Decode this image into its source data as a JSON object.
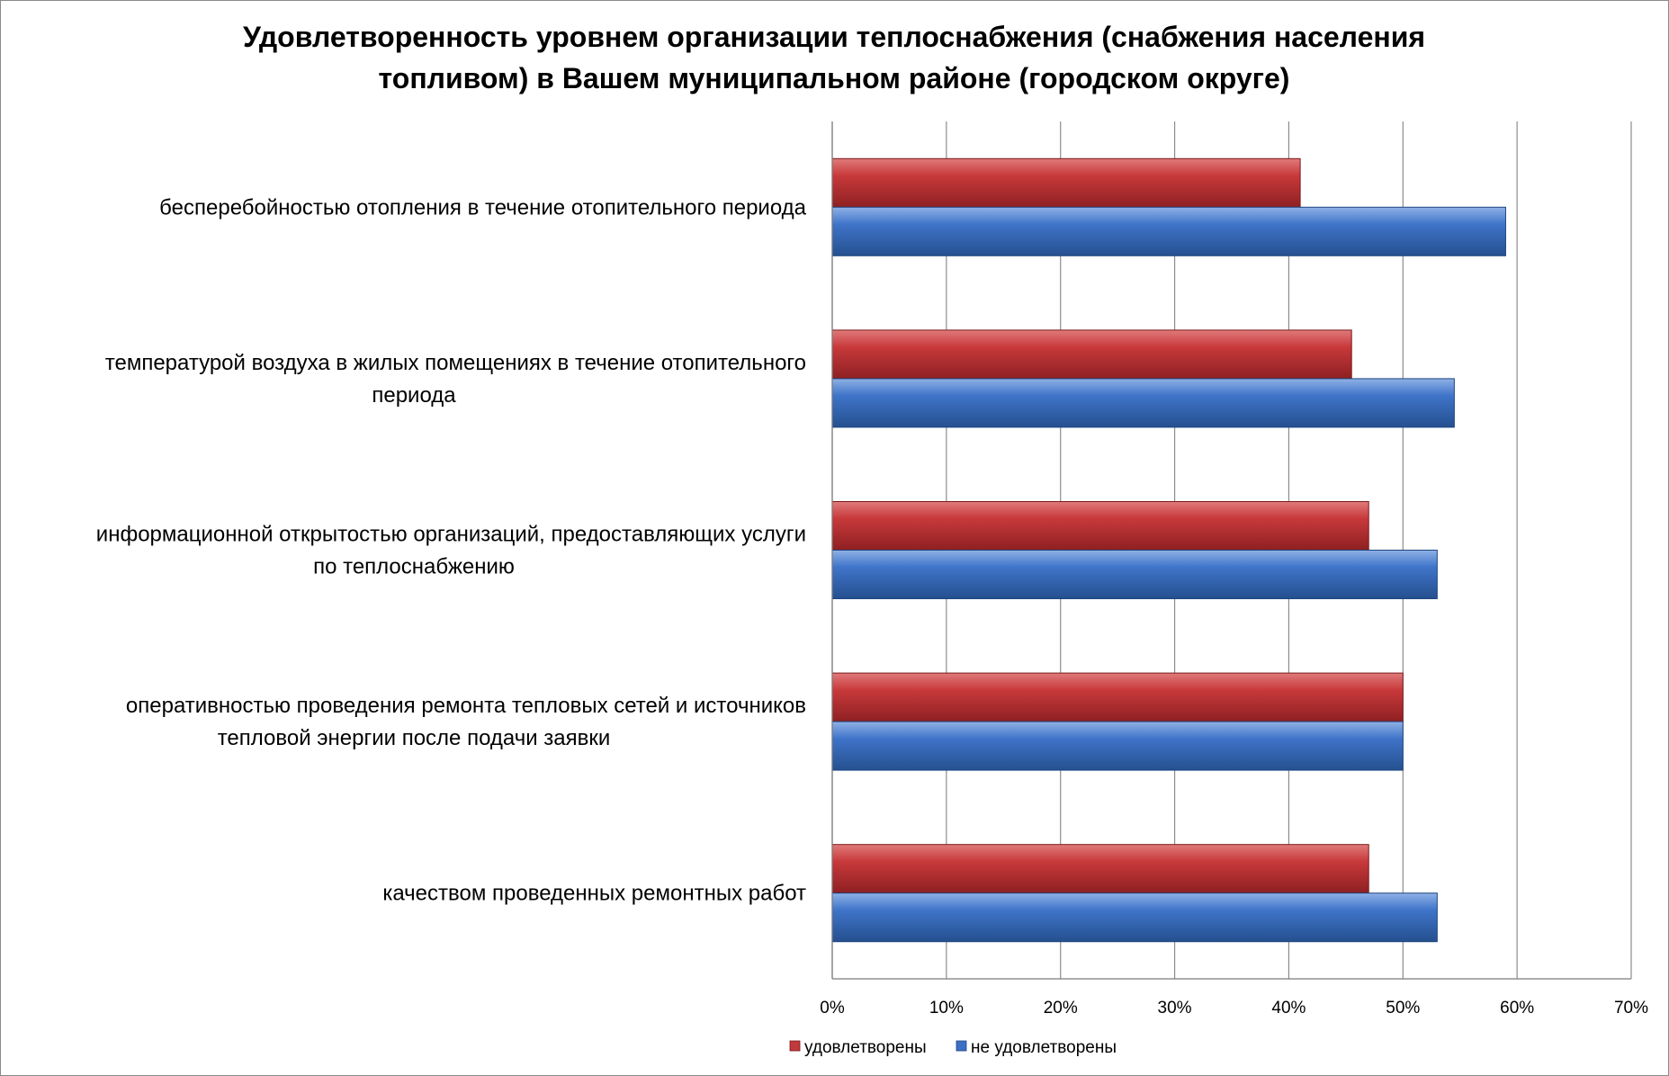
{
  "chart_data": {
    "type": "bar",
    "orientation": "horizontal",
    "title": "Удовлетворенность уровнем организации теплоснабжения (снабжения населения топливом) в Вашем муниципальном районе (городском округе)",
    "title_lines": [
      "Удовлетворенность уровнем организации теплоснабжения (снабжения населения",
      "топливом) в Вашем муниципальном районе (городском округе)"
    ],
    "categories": [
      [
        "бесперебойностью  отопления в течение отопительного периода"
      ],
      [
        "температурой  воздуха в жилых помещениях в течение отопительного",
        "периода"
      ],
      [
        "информационной открытостью  организаций, предоставляющих услуги",
        "по теплоснабжению"
      ],
      [
        "оперативностью проведения ремонта тепловых сетей и источников",
        "тепловой энергии после подачи заявки"
      ],
      [
        "качеством  проведенных ремонтных работ"
      ]
    ],
    "series": [
      {
        "name": "удовлетворены",
        "color": "#c0393b",
        "values": [
          41,
          45.5,
          47,
          50,
          47
        ]
      },
      {
        "name": "не удовлетворены",
        "color": "#3a6fc4",
        "values": [
          59,
          54.5,
          53,
          50,
          53
        ]
      }
    ],
    "x_ticks": [
      "0%",
      "10%",
      "20%",
      "30%",
      "40%",
      "50%",
      "60%",
      "70%"
    ],
    "xlim": [
      0,
      70
    ],
    "grid": true,
    "legend_position": "bottom"
  }
}
